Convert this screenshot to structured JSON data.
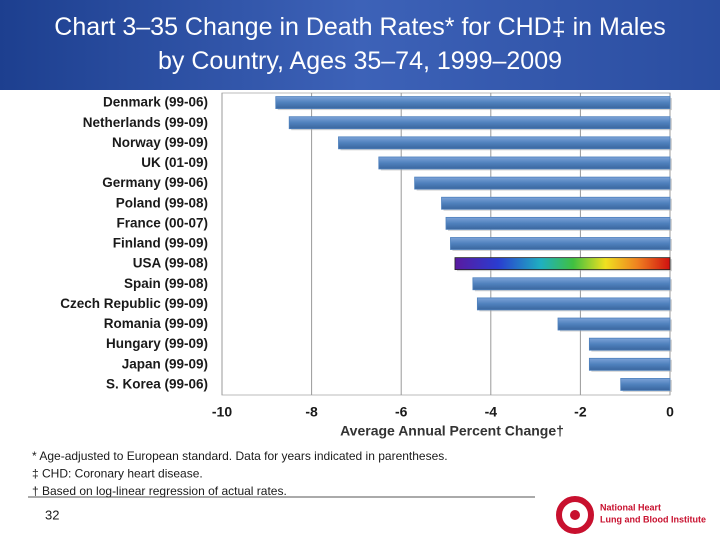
{
  "chart_data": {
    "type": "hbar",
    "title": "Chart 3–35 Change in Death Rates* for CHD‡ in Males by Country, Ages 35–74, 1999–2009",
    "categories": [
      "Denmark (99-06)",
      "Netherlands (99-09)",
      "Norway (99-09)",
      "UK (01-09)",
      "Germany (99-06)",
      "Poland (99-08)",
      "France (00-07)",
      "Finland (99-09)",
      "USA (99-08)",
      "Spain (99-08)",
      "Czech Republic (99-09)",
      "Romania (99-09)",
      "Hungary (99-09)",
      "Japan (99-09)",
      "S. Korea (99-06)"
    ],
    "values": [
      -8.8,
      -8.5,
      -7.4,
      -6.5,
      -5.7,
      -5.1,
      -5.0,
      -4.9,
      -4.8,
      -4.4,
      -4.3,
      -2.5,
      -1.8,
      -1.8,
      -1.1
    ],
    "color": "#4f81bd",
    "highlight_index": 8,
    "xlim": [
      -10,
      0
    ],
    "xticks": [
      -10,
      -8,
      -6,
      -4,
      -2,
      0
    ],
    "grid": true,
    "xlabel": "Average Annual Percent Change†"
  },
  "footnotes": [
    "* Age-adjusted to European standard. Data for years indicated in parentheses.",
    "‡ CHD: Coronary heart disease.",
    "† Based on log-linear regression of actual rates."
  ],
  "page_number": "32",
  "logo": {
    "line1": "National Heart",
    "line2": "Lung and Blood Institute"
  }
}
